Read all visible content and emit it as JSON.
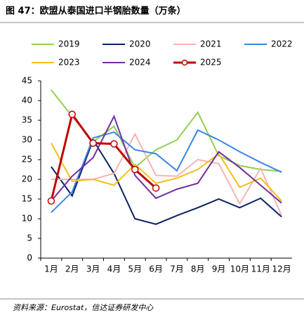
{
  "chart_data": {
    "type": "line",
    "title": "图 47：欧盟从泰国进口半钢胎数量（万条）",
    "source": "资料来源：Eurostat，信达证券研发中心",
    "categories": [
      "1月",
      "2月",
      "3月",
      "4月",
      "5月",
      "6月",
      "7月",
      "8月",
      "9月",
      "10月",
      "11月",
      "12月"
    ],
    "ylim": [
      0,
      45
    ],
    "yticks": [
      0,
      5,
      10,
      15,
      20,
      25,
      30,
      35,
      40,
      45
    ],
    "series": [
      {
        "name": "2019",
        "color": "#92d050",
        "values": [
          42.7,
          36,
          29.5,
          33.5,
          23,
          27.5,
          30,
          37,
          26,
          23.5,
          22.5,
          22
        ]
      },
      {
        "name": "2020",
        "color": "#0c2161",
        "values": [
          23.2,
          15.8,
          30,
          21.5,
          10,
          8.6,
          10.8,
          12.8,
          15,
          12.8,
          15.2,
          10.5
        ]
      },
      {
        "name": "2021",
        "color": "#f7b4b4",
        "values": [
          20,
          20,
          20,
          21.5,
          31.5,
          21,
          20.8,
          25,
          24,
          13.8,
          22.8,
          10.8
        ]
      },
      {
        "name": "2022",
        "color": "#3d85e0",
        "values": [
          11.6,
          16.8,
          30.5,
          32,
          27.5,
          26.5,
          22.2,
          32.5,
          30,
          27,
          24.3,
          21.8
        ]
      },
      {
        "name": "2023",
        "color": "#f5bf1b",
        "values": [
          29.2,
          19.5,
          20,
          18.5,
          23.8,
          19,
          20.3,
          22.5,
          26.5,
          18,
          20.3,
          14.5
        ]
      },
      {
        "name": "2024",
        "color": "#7030a0",
        "values": [
          14.5,
          20.8,
          25.5,
          36,
          21,
          15.2,
          17.5,
          19,
          27,
          23,
          18.5,
          14
        ]
      },
      {
        "name": "2025",
        "color": "#c00000",
        "markers": true,
        "values": [
          14.5,
          36.5,
          29.2,
          29,
          22.5,
          17.8,
          null,
          null,
          null,
          null,
          null,
          null
        ]
      }
    ]
  }
}
